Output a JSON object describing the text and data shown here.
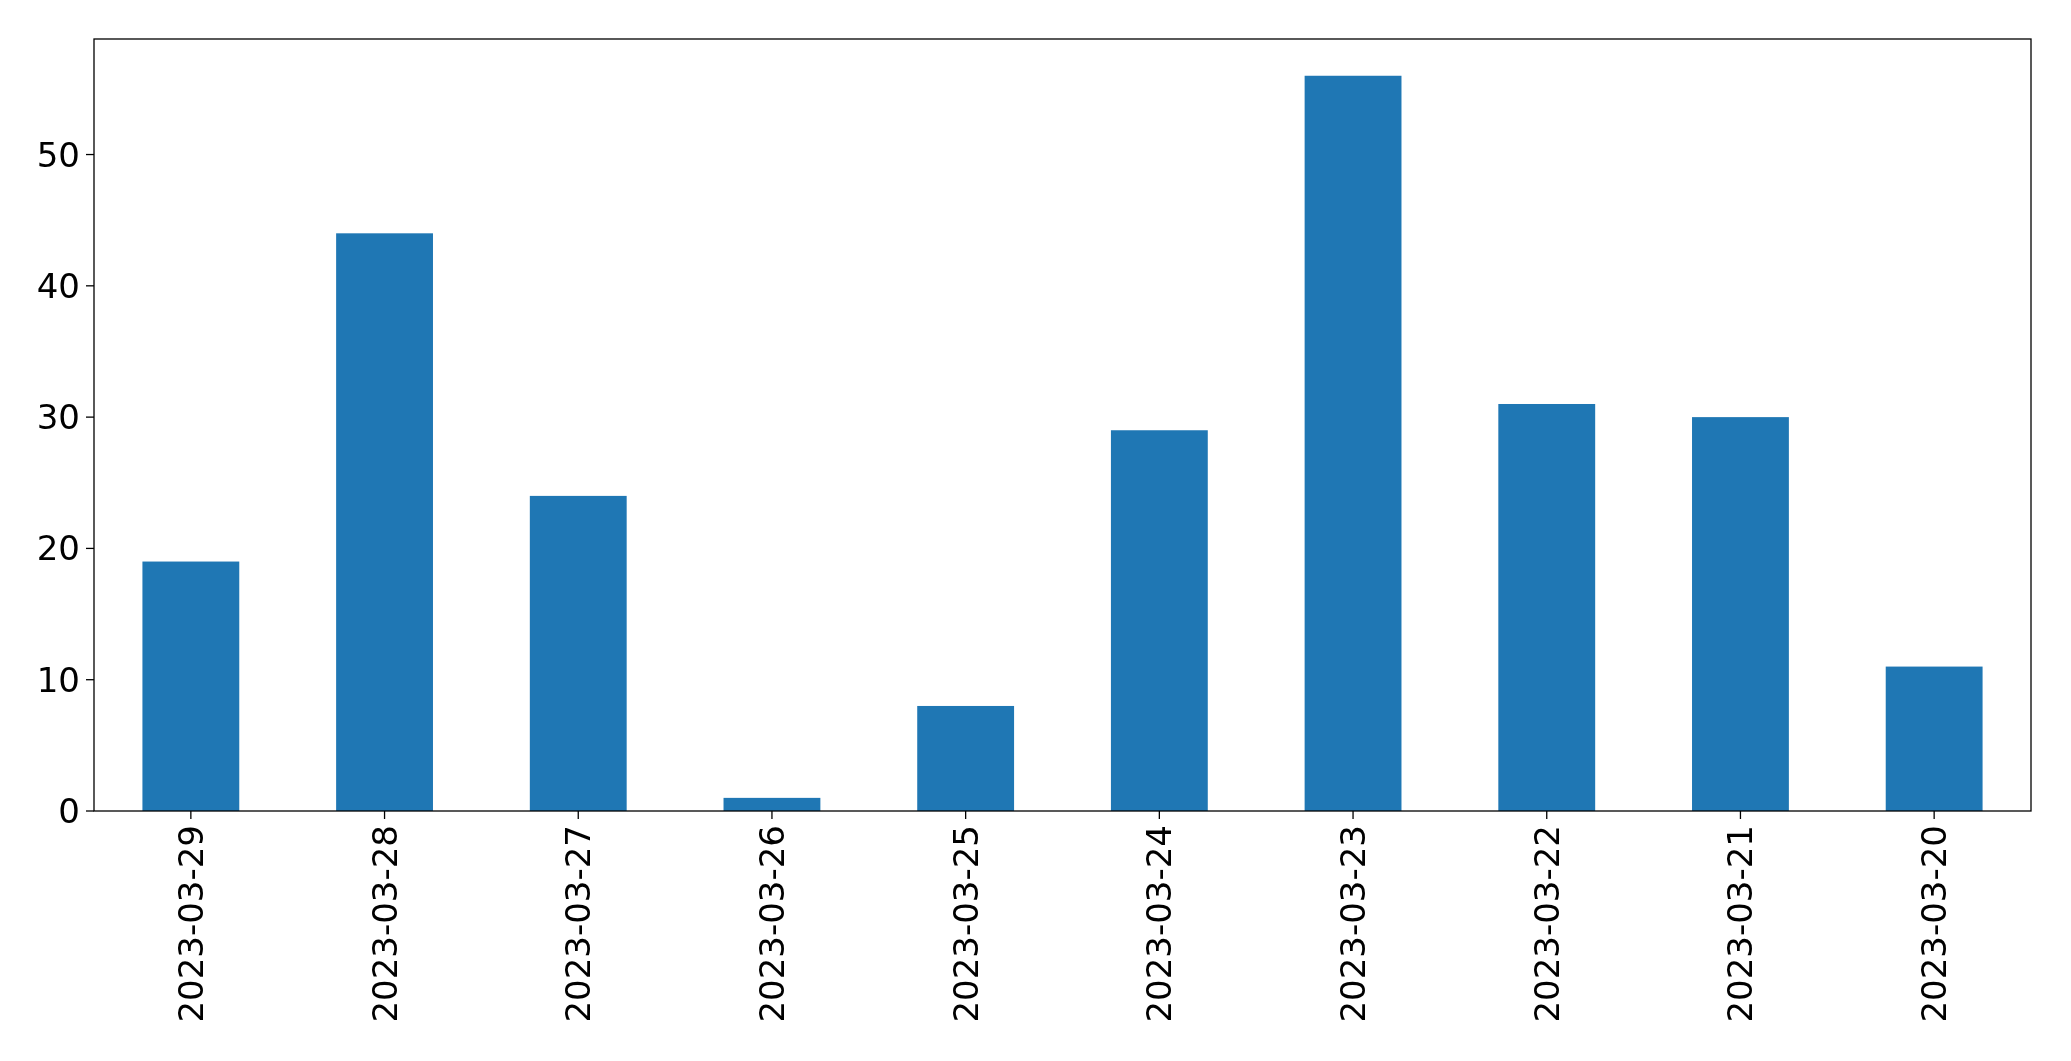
{
  "chart_data": {
    "type": "bar",
    "categories": [
      "2023-03-29",
      "2023-03-28",
      "2023-03-27",
      "2023-03-26",
      "2023-03-25",
      "2023-03-24",
      "2023-03-23",
      "2023-03-22",
      "2023-03-21",
      "2023-03-20"
    ],
    "values": [
      19,
      44,
      24,
      1,
      8,
      29,
      56,
      31,
      30,
      11
    ],
    "color": "#1f77b4",
    "ylim": [
      0,
      58.8
    ],
    "yticks": [
      0,
      10,
      20,
      30,
      40,
      50
    ],
    "grid": false
  }
}
